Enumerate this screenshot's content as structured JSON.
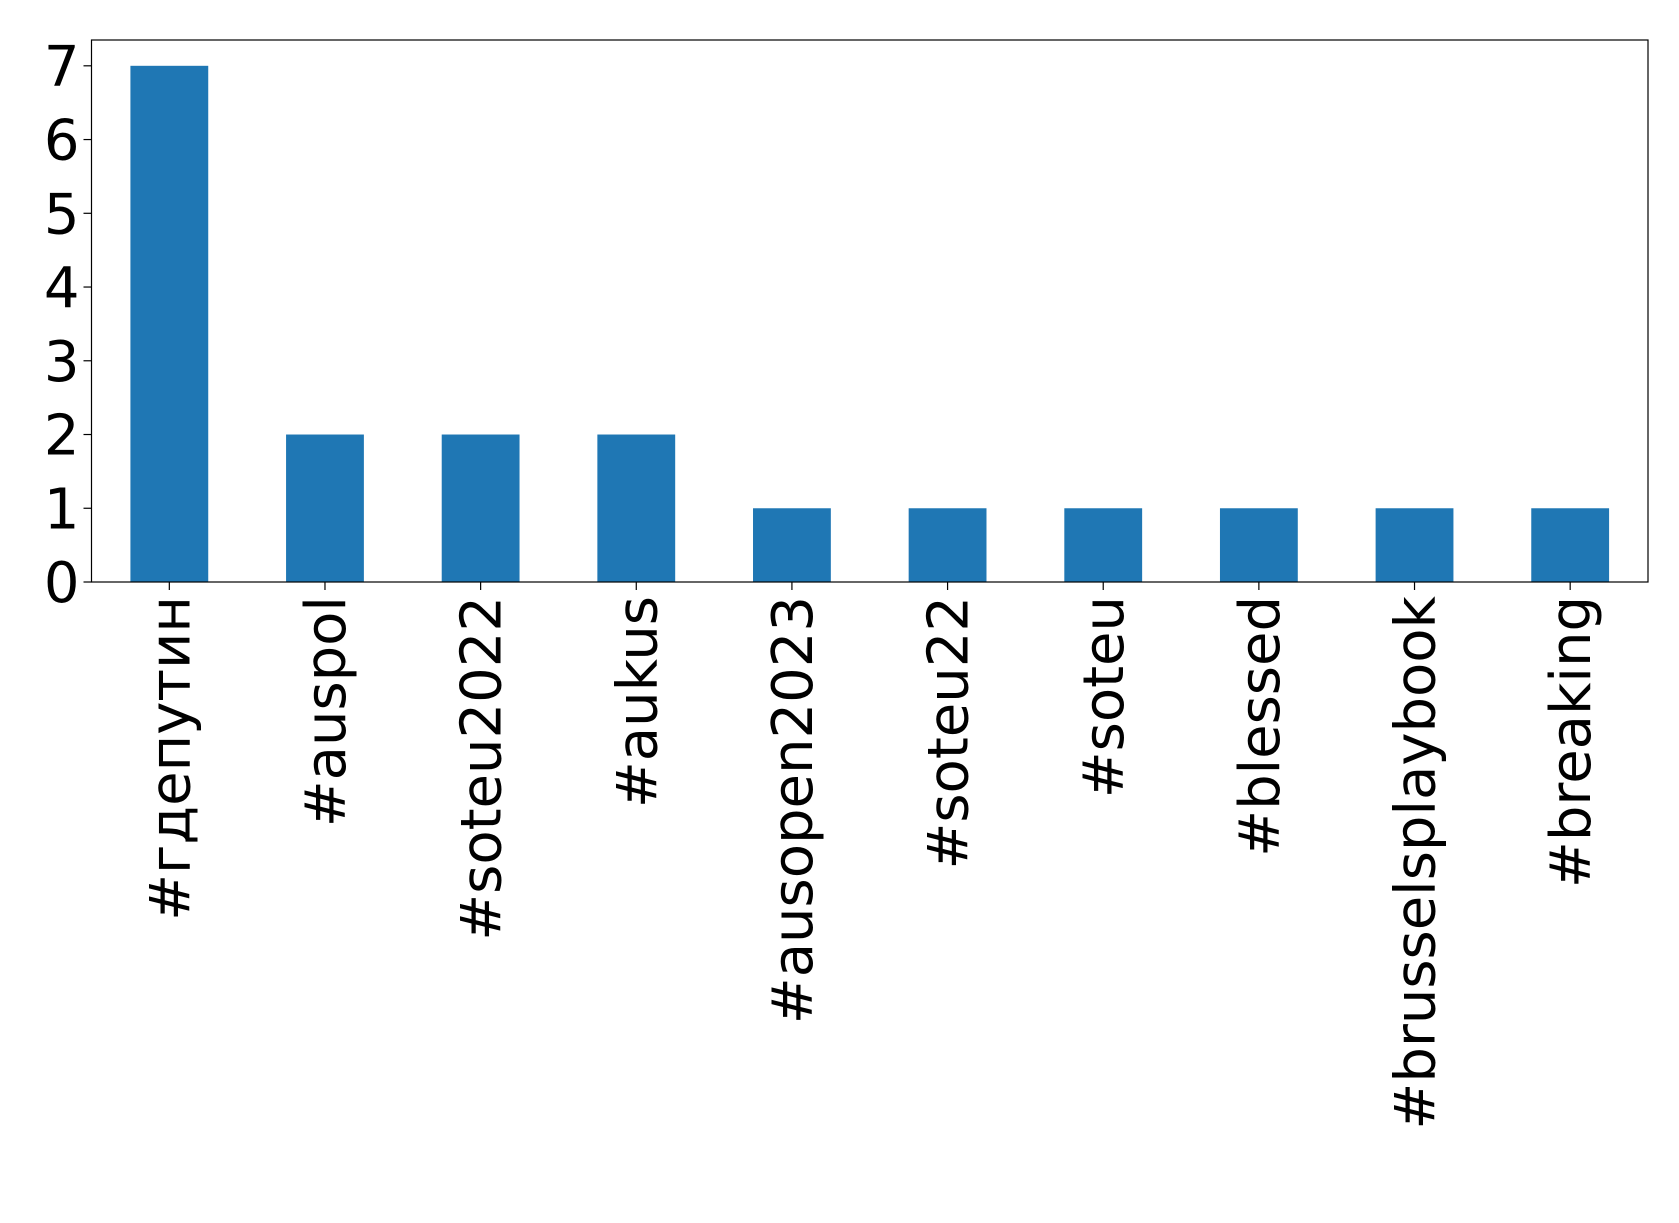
{
  "chart_data": {
    "type": "bar",
    "categories": [
      "#гдепутин",
      "#auspol",
      "#soteu2022",
      "#aukus",
      "#ausopen2023",
      "#soteu22",
      "#soteu",
      "#blessed",
      "#brusselsplaybook",
      "#breaking"
    ],
    "values": [
      7,
      2,
      2,
      2,
      1,
      1,
      1,
      1,
      1,
      1
    ],
    "color": "#1f77b4",
    "ylim": [
      0,
      7.35
    ],
    "yticks": [
      0,
      1,
      2,
      3,
      4,
      5,
      6,
      7
    ],
    "grid": false
  }
}
